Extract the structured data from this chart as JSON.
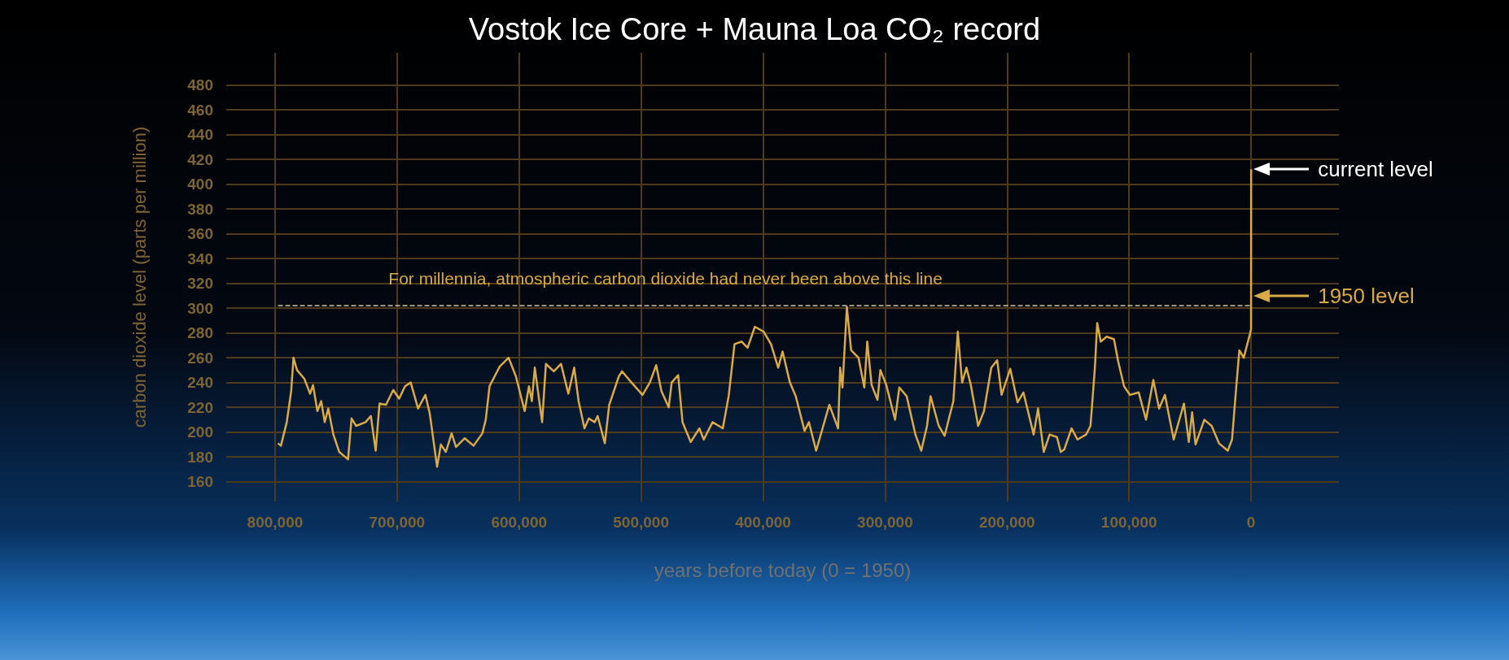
{
  "chart_data": {
    "type": "line",
    "title": "Vostok Ice Core + Mauna Loa CO₂ record",
    "xlabel": "years before today (0 = 1950)",
    "ylabel": "carbon dioxide level (parts per million)",
    "xlim": [
      840000,
      -72000
    ],
    "ylim": [
      144,
      506
    ],
    "xticks": [
      {
        "value": 800000,
        "label": "800,000"
      },
      {
        "value": 700000,
        "label": "700,000"
      },
      {
        "value": 600000,
        "label": "600,000"
      },
      {
        "value": 500000,
        "label": "500,000"
      },
      {
        "value": 400000,
        "label": "400,000"
      },
      {
        "value": 300000,
        "label": "300,000"
      },
      {
        "value": 200000,
        "label": "200,000"
      },
      {
        "value": 100000,
        "label": "100,000"
      },
      0
    ],
    "yticks": [
      160,
      180,
      200,
      220,
      240,
      260,
      280,
      300,
      320,
      340,
      360,
      380,
      400,
      420,
      440,
      460,
      480
    ],
    "grid": true,
    "marker": "none",
    "line_style": "solid",
    "x": [
      797600,
      795200,
      790400,
      786800,
      784900,
      782000,
      776000,
      771300,
      768900,
      765300,
      762200,
      759300,
      756400,
      752200,
      747400,
      740200,
      737300,
      733500,
      725800,
      721500,
      717500,
      714400,
      709100,
      703100,
      698300,
      693500,
      688800,
      682800,
      676800,
      673200,
      667200,
      664100,
      660000,
      655300,
      651700,
      644500,
      637300,
      630100,
      627300,
      624200,
      615800,
      608600,
      602600,
      595400,
      591900,
      589500,
      587100,
      581100,
      578000,
      571500,
      565600,
      559600,
      554800,
      551200,
      546400,
      542800,
      538000,
      535600,
      529700,
      526100,
      518200,
      515600,
      509600,
      498800,
      492800,
      487600,
      483300,
      477300,
      474900,
      469600,
      466000,
      459300,
      452200,
      448600,
      441400,
      433000,
      428200,
      423400,
      417500,
      412700,
      406700,
      399500,
      393500,
      387600,
      384000,
      378000,
      373200,
      366000,
      362400,
      356500,
      345700,
      338500,
      336800,
      334900,
      331300,
      327800,
      321800,
      317000,
      314600,
      311000,
      306200,
      303800,
      299000,
      291800,
      288300,
      282300,
      275100,
      270300,
      265600,
      262700,
      256000,
      251200,
      244000,
      240400,
      236800,
      233300,
      229700,
      223700,
      218900,
      212900,
      208100,
      204500,
      197400,
      191400,
      186600,
      178200,
      174600,
      169900,
      165100,
      159100,
      156000,
      153100,
      147100,
      142300,
      135200,
      131600,
      128000,
      126100,
      123200,
      118400,
      112400,
      108900,
      104100,
      99300,
      92100,
      86100,
      80100,
      75400,
      70600,
      63400,
      55000,
      51000,
      48300,
      45500,
      38300,
      32300,
      26300,
      19100,
      15600,
      12000,
      9600,
      6000,
      1200,
      0,
      -70
    ],
    "series": [
      {
        "color": "#d9aa45",
        "values": [
          191,
          189,
          208,
          233,
          260,
          250,
          243,
          231,
          238,
          217,
          225,
          208,
          219,
          198,
          184,
          178,
          211,
          205,
          208,
          213,
          185,
          223,
          222,
          234,
          227,
          237,
          240,
          219,
          230,
          215,
          172,
          190,
          184,
          199,
          188,
          195,
          189,
          199,
          210,
          237,
          253,
          260,
          245,
          217,
          237,
          225,
          252,
          208,
          255,
          249,
          255,
          231,
          252,
          225,
          203,
          211,
          208,
          213,
          191,
          222,
          245,
          249,
          242,
          230,
          240,
          254,
          233,
          220,
          240,
          246,
          208,
          192,
          203,
          194,
          208,
          203,
          229,
          271,
          273,
          268,
          285,
          281,
          271,
          252,
          265,
          240,
          229,
          201,
          208,
          185,
          222,
          203,
          252,
          236,
          301,
          266,
          260,
          236,
          273,
          238,
          226,
          250,
          238,
          210,
          236,
          229,
          198,
          185,
          205,
          229,
          205,
          197,
          225,
          281,
          240,
          252,
          238,
          205,
          217,
          252,
          258,
          230,
          251,
          224,
          232,
          198,
          219,
          184,
          198,
          196,
          184,
          186,
          203,
          194,
          198,
          205,
          252,
          288,
          273,
          277,
          275,
          257,
          237,
          230,
          232,
          210,
          242,
          219,
          230,
          194,
          223,
          192,
          216,
          190,
          210,
          205,
          191,
          185,
          194,
          238,
          266,
          260,
          278,
          283,
          412
        ]
      }
    ],
    "ref_lines": [
      {
        "axis": "y",
        "value": 302,
        "line_style": "dashed",
        "color": "#cfc4a6"
      }
    ],
    "annotations": [
      "For millennia, atmospheric carbon dioxide had never been above this line",
      "current level",
      "1950 level"
    ]
  }
}
